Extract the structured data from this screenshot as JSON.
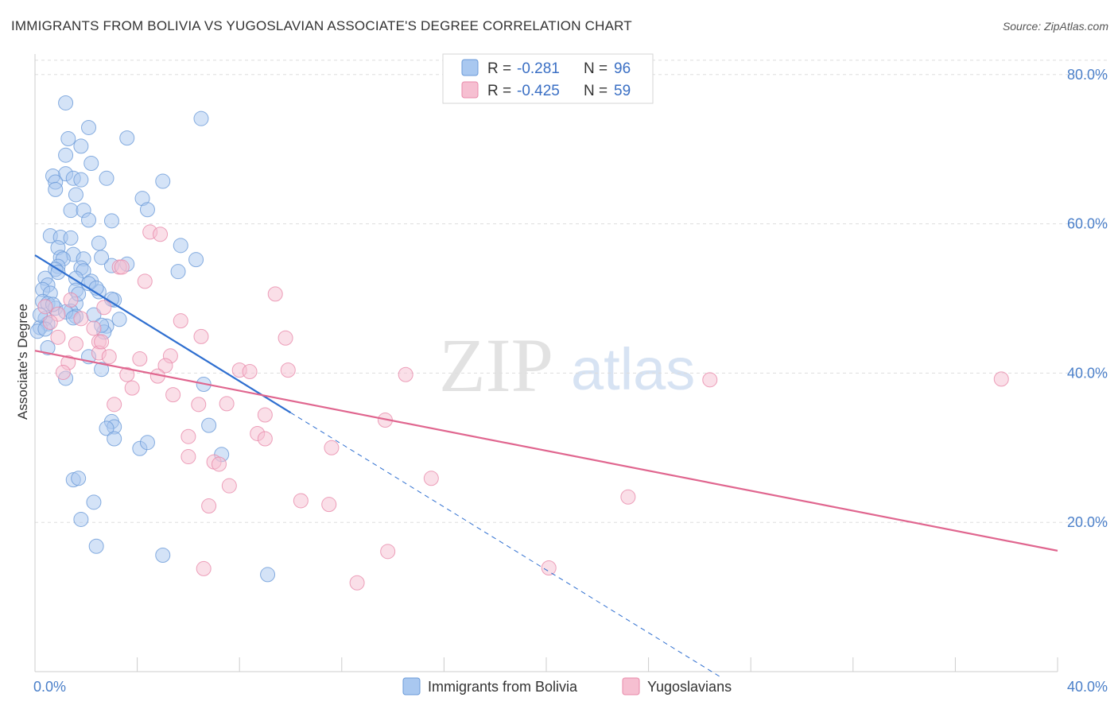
{
  "colors": {
    "blue_fill": "#a9c8f0",
    "blue_stroke": "#6a9ad8",
    "blue_line": "#2f6fd0",
    "pink_fill": "#f6bfd1",
    "pink_stroke": "#e88aaa",
    "pink_line": "#e0668f",
    "grid": "#dddddd",
    "tick_text": "#4a7fc9"
  },
  "chart_data": {
    "type": "scatter",
    "title": "IMMIGRANTS FROM BOLIVIA VS YUGOSLAVIAN ASSOCIATE'S DEGREE CORRELATION CHART",
    "source": "Source: ZipAtlas.com",
    "ylabel": "Associate's Degree",
    "xlabel": "",
    "xlim": [
      0,
      40
    ],
    "ylim": [
      0,
      82
    ],
    "x_tick_labels": [
      {
        "value": 0,
        "label": "0.0%"
      },
      {
        "value": 40,
        "label": "40.0%"
      }
    ],
    "y_tick_labels": [
      {
        "value": 20,
        "label": "20.0%"
      },
      {
        "value": 40,
        "label": "40.0%"
      },
      {
        "value": 60,
        "label": "60.0%"
      },
      {
        "value": 80,
        "label": "80.0%"
      }
    ],
    "grid": true,
    "legend_placement": "top-center",
    "watermark": {
      "zip": "ZIP",
      "atlas": "atlas"
    },
    "legend_top": [
      {
        "r_label": "R =",
        "r_value": "-0.281",
        "n_label": "N =",
        "n_value": "96"
      },
      {
        "r_label": "R =",
        "r_value": "-0.425",
        "n_label": "N =",
        "n_value": "59"
      }
    ],
    "series": [
      {
        "name": "Immigrants from Bolivia",
        "trend": {
          "x0": 0,
          "y0": 55.8,
          "x1": 10.0,
          "y1": 34.7,
          "dash_to_x": 26.9,
          "dash_to_y": -0.9
        },
        "points": [
          [
            1.2,
            76.2
          ],
          [
            2.1,
            72.9
          ],
          [
            1.3,
            71.4
          ],
          [
            1.8,
            70.4
          ],
          [
            1.2,
            69.2
          ],
          [
            2.2,
            68.1
          ],
          [
            1.2,
            66.7
          ],
          [
            0.7,
            66.4
          ],
          [
            0.8,
            65.6
          ],
          [
            1.5,
            66.1
          ],
          [
            1.8,
            65.9
          ],
          [
            0.8,
            64.6
          ],
          [
            1.6,
            63.9
          ],
          [
            1.4,
            61.8
          ],
          [
            1.9,
            61.8
          ],
          [
            2.1,
            60.5
          ],
          [
            0.6,
            58.4
          ],
          [
            1.0,
            58.2
          ],
          [
            1.4,
            58.1
          ],
          [
            2.5,
            57.4
          ],
          [
            0.9,
            56.8
          ],
          [
            1.5,
            55.9
          ],
          [
            1.0,
            55.5
          ],
          [
            1.1,
            55.3
          ],
          [
            1.9,
            55.3
          ],
          [
            0.9,
            54.3
          ],
          [
            0.8,
            53.9
          ],
          [
            1.8,
            54.1
          ],
          [
            1.9,
            53.7
          ],
          [
            0.9,
            53.5
          ],
          [
            2.2,
            52.3
          ],
          [
            0.4,
            52.7
          ],
          [
            1.6,
            52.7
          ],
          [
            0.5,
            51.8
          ],
          [
            0.3,
            51.2
          ],
          [
            1.6,
            51.1
          ],
          [
            2.5,
            50.9
          ],
          [
            0.6,
            50.7
          ],
          [
            0.3,
            49.6
          ],
          [
            0.5,
            49.3
          ],
          [
            1.6,
            49.3
          ],
          [
            0.8,
            48.7
          ],
          [
            1.4,
            48.3
          ],
          [
            2.3,
            47.8
          ],
          [
            0.4,
            47.3
          ],
          [
            1.6,
            47.6
          ],
          [
            0.5,
            46.6
          ],
          [
            0.2,
            46.1
          ],
          [
            2.8,
            46.3
          ],
          [
            3.1,
            49.8
          ],
          [
            2.7,
            45.5
          ],
          [
            0.1,
            45.6
          ],
          [
            0.5,
            43.4
          ],
          [
            2.1,
            42.2
          ],
          [
            2.6,
            40.5
          ],
          [
            1.2,
            39.3
          ],
          [
            3.0,
            33.5
          ],
          [
            3.1,
            32.8
          ],
          [
            2.8,
            32.6
          ],
          [
            3.1,
            31.2
          ],
          [
            4.1,
            29.9
          ],
          [
            4.4,
            30.7
          ],
          [
            1.5,
            25.7
          ],
          [
            1.7,
            25.9
          ],
          [
            2.3,
            22.7
          ],
          [
            1.8,
            20.4
          ],
          [
            2.4,
            16.8
          ],
          [
            5.0,
            15.6
          ],
          [
            9.1,
            13.0
          ],
          [
            3.6,
            71.5
          ],
          [
            6.5,
            74.1
          ],
          [
            2.8,
            66.1
          ],
          [
            5.0,
            65.7
          ],
          [
            4.2,
            63.4
          ],
          [
            4.4,
            61.9
          ],
          [
            3.0,
            60.4
          ],
          [
            5.7,
            57.1
          ],
          [
            6.3,
            55.2
          ],
          [
            3.0,
            54.4
          ],
          [
            3.6,
            54.6
          ],
          [
            5.6,
            53.6
          ],
          [
            2.6,
            55.5
          ],
          [
            6.6,
            38.5
          ],
          [
            6.8,
            33.0
          ],
          [
            7.3,
            29.1
          ],
          [
            3.0,
            49.9
          ],
          [
            0.2,
            47.8
          ],
          [
            1.7,
            50.6
          ],
          [
            2.1,
            52.0
          ],
          [
            2.4,
            51.4
          ],
          [
            0.7,
            49.2
          ],
          [
            1.2,
            48.2
          ],
          [
            2.6,
            46.4
          ],
          [
            0.4,
            45.9
          ],
          [
            1.5,
            47.4
          ],
          [
            3.3,
            47.2
          ]
        ]
      },
      {
        "name": "Yugoslavians",
        "trend": {
          "x0": 0,
          "y0": 43.0,
          "x1": 40.0,
          "y1": 16.2
        },
        "points": [
          [
            4.5,
            58.9
          ],
          [
            4.9,
            58.6
          ],
          [
            4.3,
            52.3
          ],
          [
            9.4,
            50.6
          ],
          [
            3.3,
            54.2
          ],
          [
            0.4,
            48.9
          ],
          [
            1.4,
            49.8
          ],
          [
            2.7,
            48.8
          ],
          [
            0.9,
            47.9
          ],
          [
            1.8,
            47.3
          ],
          [
            0.6,
            46.8
          ],
          [
            2.3,
            46.0
          ],
          [
            5.7,
            47.0
          ],
          [
            0.9,
            44.8
          ],
          [
            6.5,
            44.9
          ],
          [
            2.5,
            44.2
          ],
          [
            9.8,
            44.7
          ],
          [
            2.5,
            42.7
          ],
          [
            2.9,
            42.2
          ],
          [
            4.1,
            41.9
          ],
          [
            5.3,
            42.3
          ],
          [
            1.3,
            41.4
          ],
          [
            5.1,
            41.0
          ],
          [
            8.0,
            40.4
          ],
          [
            8.4,
            40.2
          ],
          [
            9.9,
            40.4
          ],
          [
            14.5,
            39.8
          ],
          [
            26.4,
            39.1
          ],
          [
            37.8,
            39.2
          ],
          [
            3.6,
            39.8
          ],
          [
            4.8,
            39.6
          ],
          [
            3.8,
            38.0
          ],
          [
            1.1,
            40.1
          ],
          [
            5.4,
            37.1
          ],
          [
            7.5,
            35.9
          ],
          [
            3.1,
            35.8
          ],
          [
            6.4,
            35.8
          ],
          [
            9.0,
            34.4
          ],
          [
            13.7,
            33.7
          ],
          [
            8.7,
            31.9
          ],
          [
            9.0,
            31.2
          ],
          [
            6.0,
            31.5
          ],
          [
            11.6,
            30.0
          ],
          [
            6.0,
            28.8
          ],
          [
            7.0,
            28.1
          ],
          [
            7.2,
            27.8
          ],
          [
            15.5,
            25.9
          ],
          [
            7.6,
            24.9
          ],
          [
            10.4,
            22.9
          ],
          [
            11.5,
            22.4
          ],
          [
            6.8,
            22.2
          ],
          [
            23.2,
            23.4
          ],
          [
            13.8,
            16.1
          ],
          [
            20.1,
            13.9
          ],
          [
            6.6,
            13.8
          ],
          [
            12.6,
            11.9
          ],
          [
            3.4,
            54.2
          ],
          [
            2.6,
            44.2
          ],
          [
            1.6,
            43.9
          ]
        ]
      }
    ]
  }
}
